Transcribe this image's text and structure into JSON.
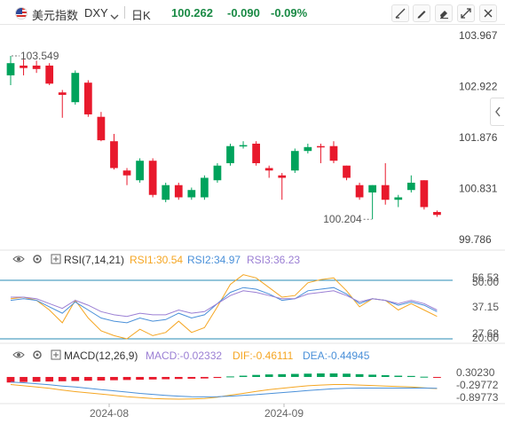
{
  "toolbar": {
    "symbol_name": "美元指数",
    "symbol_code": "DXY",
    "chevron": "chevron-down-icon",
    "timeframe": "日K",
    "price": "100.262",
    "change": "-0.090",
    "change_pct": "-0.09%",
    "buttons": [
      "draw-line-icon",
      "pen-icon",
      "eraser-icon",
      "fullscreen-icon",
      "close-icon"
    ],
    "colors": {
      "down": "#00a35c",
      "text": "#333333",
      "price": "#1f7a3a"
    }
  },
  "price_axis": {
    "labels": [
      "103.967",
      "102.922",
      "101.876",
      "100.831",
      "99.786"
    ],
    "current": "100.262"
  },
  "annotations": {
    "high": "103.549",
    "low": "100.204"
  },
  "rsi": {
    "label": "RSI(7,14,21)",
    "rsi1": "RSI1:30.54",
    "rsi2": "RSI2:34.97",
    "rsi3": "RSI3:36.23",
    "axis": [
      "56.53",
      "50.00",
      "37.15",
      "27.68",
      "20.00"
    ],
    "colors": {
      "rsi1": "#f5a623",
      "rsi2": "#4a90d9",
      "rsi3": "#9b7fd4",
      "levels": "#2a8bb5"
    }
  },
  "macd": {
    "label": "MACD(12,26,9)",
    "macd": "MACD:-0.02332",
    "dif": "DIF:-0.46111",
    "dea": "DEA:-0.44945",
    "axis": [
      "0.30230",
      "-0.29772",
      "-0.89773"
    ],
    "colors": {
      "macd": "#9b7fd4",
      "dif": "#f5a623",
      "dea": "#4a90d9",
      "up": "#00a35c",
      "down": "#e8192c"
    }
  },
  "time_axis": {
    "labels": [
      "2024-08",
      "2024-09"
    ]
  },
  "chart_data": {
    "type": "candlestick",
    "title": "",
    "ylim": [
      99.786,
      103.967
    ],
    "colors": {
      "up": "#00a35c",
      "down": "#e8192c"
    },
    "candles": [
      {
        "o": 103.15,
        "h": 103.55,
        "l": 102.95,
        "c": 103.4
      },
      {
        "o": 103.35,
        "h": 103.5,
        "l": 103.15,
        "c": 103.3
      },
      {
        "o": 103.35,
        "h": 103.45,
        "l": 103.2,
        "c": 103.28
      },
      {
        "o": 103.35,
        "h": 103.4,
        "l": 102.95,
        "c": 102.98
      },
      {
        "o": 102.8,
        "h": 102.85,
        "l": 102.28,
        "c": 102.75
      },
      {
        "o": 102.6,
        "h": 103.25,
        "l": 102.55,
        "c": 103.2
      },
      {
        "o": 103.0,
        "h": 103.05,
        "l": 102.3,
        "c": 102.35
      },
      {
        "o": 102.3,
        "h": 102.4,
        "l": 101.8,
        "c": 101.82
      },
      {
        "o": 101.8,
        "h": 101.95,
        "l": 101.22,
        "c": 101.25
      },
      {
        "o": 101.2,
        "h": 101.25,
        "l": 100.9,
        "c": 101.1
      },
      {
        "o": 101.0,
        "h": 101.45,
        "l": 100.95,
        "c": 101.4
      },
      {
        "o": 101.4,
        "h": 101.45,
        "l": 100.65,
        "c": 100.7
      },
      {
        "o": 100.6,
        "h": 100.95,
        "l": 100.55,
        "c": 100.9
      },
      {
        "o": 100.9,
        "h": 100.95,
        "l": 100.6,
        "c": 100.65
      },
      {
        "o": 100.65,
        "h": 100.85,
        "l": 100.6,
        "c": 100.8
      },
      {
        "o": 100.65,
        "h": 101.1,
        "l": 100.6,
        "c": 101.05
      },
      {
        "o": 101.0,
        "h": 101.35,
        "l": 100.95,
        "c": 101.3
      },
      {
        "o": 101.35,
        "h": 101.75,
        "l": 101.3,
        "c": 101.7
      },
      {
        "o": 101.7,
        "h": 101.8,
        "l": 101.65,
        "c": 101.72
      },
      {
        "o": 101.75,
        "h": 101.8,
        "l": 101.3,
        "c": 101.35
      },
      {
        "o": 101.25,
        "h": 101.3,
        "l": 101.05,
        "c": 101.2
      },
      {
        "o": 101.1,
        "h": 101.15,
        "l": 100.6,
        "c": 101.05
      },
      {
        "o": 101.2,
        "h": 101.65,
        "l": 101.15,
        "c": 101.6
      },
      {
        "o": 101.6,
        "h": 101.75,
        "l": 101.55,
        "c": 101.68
      },
      {
        "o": 101.7,
        "h": 101.75,
        "l": 101.35,
        "c": 101.68
      },
      {
        "o": 101.7,
        "h": 101.8,
        "l": 101.35,
        "c": 101.4
      },
      {
        "o": 101.3,
        "h": 101.3,
        "l": 101.0,
        "c": 101.05
      },
      {
        "o": 100.9,
        "h": 100.95,
        "l": 100.6,
        "c": 100.65
      },
      {
        "o": 100.75,
        "h": 100.9,
        "l": 100.2,
        "c": 100.9
      },
      {
        "o": 100.9,
        "h": 101.35,
        "l": 100.5,
        "c": 100.6
      },
      {
        "o": 100.6,
        "h": 100.7,
        "l": 100.45,
        "c": 100.65
      },
      {
        "o": 100.8,
        "h": 101.1,
        "l": 100.75,
        "c": 100.95
      },
      {
        "o": 101.0,
        "h": 101.0,
        "l": 100.4,
        "c": 100.45
      },
      {
        "o": 100.35,
        "h": 100.38,
        "l": 100.25,
        "c": 100.29
      }
    ]
  }
}
